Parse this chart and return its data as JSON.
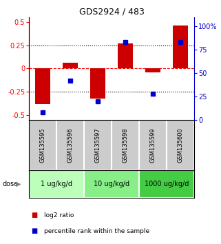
{
  "title": "GDS2924 / 483",
  "samples": [
    "GSM135595",
    "GSM135596",
    "GSM135597",
    "GSM135598",
    "GSM135599",
    "GSM135600"
  ],
  "log2_ratio": [
    -0.38,
    0.06,
    -0.32,
    0.27,
    -0.04,
    0.46
  ],
  "percentile_rank": [
    8,
    42,
    20,
    83,
    28,
    83
  ],
  "doses": [
    {
      "label": "1 ug/kg/d",
      "samples": [
        0,
        1
      ],
      "color": "#bbffbb"
    },
    {
      "label": "10 ug/kg/d",
      "samples": [
        2,
        3
      ],
      "color": "#88ee88"
    },
    {
      "label": "1000 ug/kg/d",
      "samples": [
        4,
        5
      ],
      "color": "#44cc44"
    }
  ],
  "bar_color": "#cc0000",
  "dot_color": "#0000cc",
  "ylim_left": [
    -0.55,
    0.55
  ],
  "ylim_right": [
    0,
    110
  ],
  "yticks_left": [
    -0.5,
    -0.25,
    0,
    0.25,
    0.5
  ],
  "ytick_labels_left": [
    "-0.5",
    "-0.25",
    "0",
    "0.25",
    "0.5"
  ],
  "yticks_right": [
    0,
    25,
    50,
    75,
    100
  ],
  "ytick_labels_right": [
    "0",
    "25",
    "50",
    "75",
    "100%"
  ],
  "sample_box_color": "#cccccc",
  "dose_label": "dose",
  "legend_bar_label": "log2 ratio",
  "legend_dot_label": "percentile rank within the sample",
  "bar_width": 0.55
}
